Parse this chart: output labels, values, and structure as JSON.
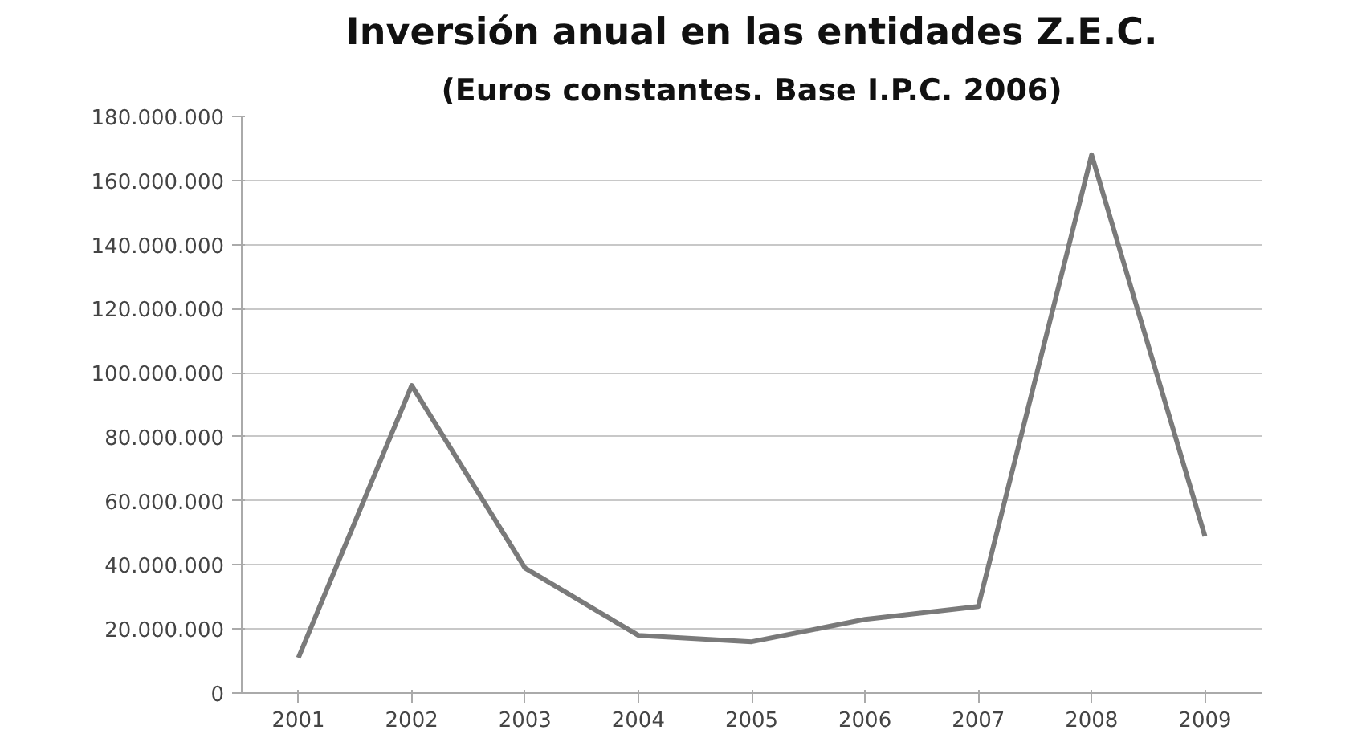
{
  "chart_data": {
    "type": "line",
    "title": "Inversión anual en las entidades Z.E.C.",
    "subtitle": "(Euros constantes. Base I.P.C. 2006)",
    "categories": [
      "2001",
      "2002",
      "2003",
      "2004",
      "2005",
      "2006",
      "2007",
      "2008",
      "2009"
    ],
    "series": [
      {
        "color": "#7a7a7a",
        "values": [
          11000000,
          96000000,
          39000000,
          18000000,
          16000000,
          23000000,
          27000000,
          168000000,
          49000000
        ]
      }
    ],
    "ylim": [
      0,
      180000000
    ],
    "yticks": [
      0,
      {
        "value": 20000000,
        "label": "20.000.000"
      },
      {
        "value": 40000000,
        "label": "40.000.000"
      },
      {
        "value": 60000000,
        "label": "60.000.000"
      },
      {
        "value": 80000000,
        "label": "80.000.000"
      },
      {
        "value": 100000000,
        "label": "100.000.000"
      },
      {
        "value": 120000000,
        "label": "120.000.000"
      },
      {
        "value": 140000000,
        "label": "140.000.000"
      },
      {
        "value": 160000000,
        "label": "160.000.000"
      },
      {
        "value": 180000000,
        "label": "180.000.000"
      }
    ],
    "grid": "y",
    "marker": "none",
    "line_style": "solid"
  }
}
